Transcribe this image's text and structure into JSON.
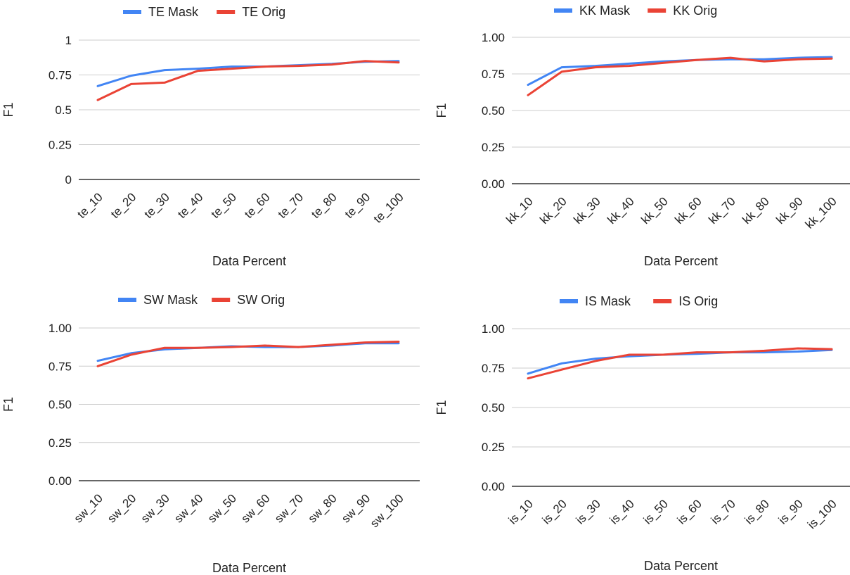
{
  "colors": {
    "mask": "#4285F4",
    "orig": "#EA4335",
    "grid": "#cccccc",
    "axis": "#333333",
    "text": "#222222"
  },
  "chart_data": [
    {
      "type": "line",
      "categories": [
        "te_10",
        "te_20",
        "te_30",
        "te_40",
        "te_50",
        "te_60",
        "te_70",
        "te_80",
        "te_90",
        "te_100"
      ],
      "series": [
        {
          "name": "TE Mask",
          "values": [
            0.67,
            0.745,
            0.785,
            0.795,
            0.81,
            0.81,
            0.82,
            0.83,
            0.845,
            0.85
          ]
        },
        {
          "name": "TE Orig",
          "values": [
            0.57,
            0.685,
            0.695,
            0.78,
            0.795,
            0.81,
            0.815,
            0.825,
            0.85,
            0.84
          ]
        }
      ],
      "yticks": [
        "0",
        "0.25",
        "0.5",
        "0.75",
        "1"
      ],
      "ylim": [
        0,
        1
      ],
      "xlabel": "Data Percent",
      "ylabel": "F1",
      "legend": "top",
      "grid": true
    },
    {
      "type": "line",
      "categories": [
        "kk_10",
        "kk_20",
        "kk_30",
        "kk_40",
        "kk_50",
        "kk_60",
        "kk_70",
        "kk_80",
        "kk_90",
        "kk_100"
      ],
      "series": [
        {
          "name": "KK Mask",
          "values": [
            0.675,
            0.795,
            0.805,
            0.82,
            0.835,
            0.845,
            0.85,
            0.85,
            0.86,
            0.865
          ]
        },
        {
          "name": "KK Orig",
          "values": [
            0.605,
            0.765,
            0.795,
            0.805,
            0.825,
            0.845,
            0.86,
            0.835,
            0.85,
            0.855
          ]
        }
      ],
      "yticks": [
        "0.00",
        "0.25",
        "0.50",
        "0.75",
        "1.00"
      ],
      "ylim": [
        0,
        1
      ],
      "xlabel": "Data Percent",
      "ylabel": "F1",
      "legend": "top",
      "grid": true
    },
    {
      "type": "line",
      "categories": [
        "sw_10",
        "sw_20",
        "sw_30",
        "sw_40",
        "sw_50",
        "sw_60",
        "sw_70",
        "sw_80",
        "sw_90",
        "sw_100"
      ],
      "series": [
        {
          "name": "SW Mask",
          "values": [
            0.785,
            0.835,
            0.86,
            0.87,
            0.88,
            0.875,
            0.875,
            0.885,
            0.9,
            0.9
          ]
        },
        {
          "name": "SW Orig",
          "values": [
            0.75,
            0.825,
            0.87,
            0.87,
            0.875,
            0.885,
            0.875,
            0.89,
            0.905,
            0.91
          ]
        }
      ],
      "yticks": [
        "0.00",
        "0.25",
        "0.50",
        "0.75",
        "1.00"
      ],
      "ylim": [
        0,
        1
      ],
      "xlabel": "Data Percent",
      "ylabel": "F1",
      "legend": "top",
      "grid": true
    },
    {
      "type": "line",
      "categories": [
        "is_10",
        "is_20",
        "is_30",
        "is_40",
        "is_50",
        "is_60",
        "is_70",
        "is_80",
        "is_90",
        "is_100"
      ],
      "series": [
        {
          "name": "IS Mask",
          "values": [
            0.715,
            0.78,
            0.81,
            0.825,
            0.835,
            0.84,
            0.85,
            0.85,
            0.855,
            0.865
          ]
        },
        {
          "name": "IS Orig",
          "values": [
            0.685,
            0.74,
            0.795,
            0.835,
            0.835,
            0.85,
            0.85,
            0.86,
            0.875,
            0.87
          ]
        }
      ],
      "yticks": [
        "0.00",
        "0.25",
        "0.50",
        "0.75",
        "1.00"
      ],
      "ylim": [
        0,
        1
      ],
      "xlabel": "Data Percent",
      "ylabel": "F1",
      "legend": "top",
      "grid": true
    }
  ]
}
